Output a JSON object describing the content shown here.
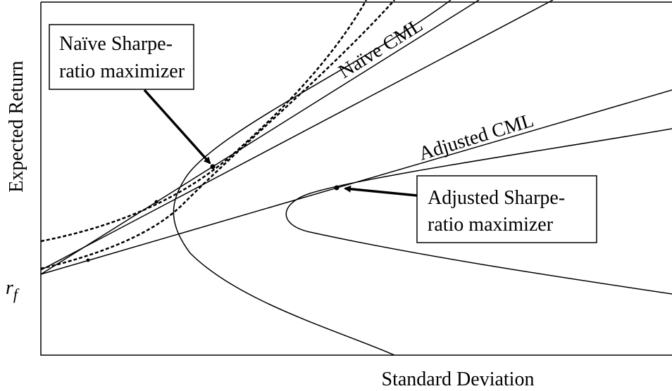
{
  "axes": {
    "y_label": "Expected Return",
    "x_label": "Standard Deviation",
    "origin_label": {
      "main": "r",
      "subscript": "f"
    }
  },
  "lines": [
    {
      "label": "Naïve CML"
    },
    {
      "label": "Adjusted CML"
    }
  ],
  "callouts": [
    {
      "lines": [
        "Naïve Sharpe-",
        "ratio maximizer"
      ]
    },
    {
      "lines": [
        "Adjusted Sharpe-",
        "ratio maximizer"
      ]
    }
  ]
}
